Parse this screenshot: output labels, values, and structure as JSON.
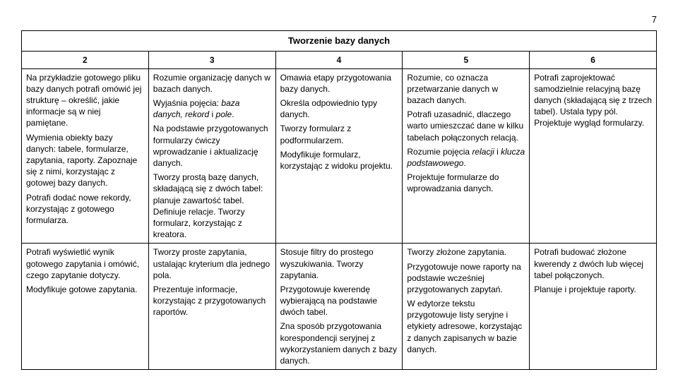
{
  "page_number": "7",
  "table": {
    "title": "Tworzenie bazy danych",
    "column_headers": [
      "2",
      "3",
      "4",
      "5",
      "6"
    ],
    "column_widths": [
      "20%",
      "20%",
      "20%",
      "20%",
      "20%"
    ],
    "rows": [
      {
        "cells": [
          {
            "paragraphs": [
              "Na przykładzie gotowego pliku bazy danych potrafi omówić jej strukturę – określić, jakie informacje są w niej pamiętane.",
              "Wymienia obiekty bazy danych: tabele, formularze, zapytania, raporty. Zapoznaje się z nimi, korzystając z gotowej bazy danych.",
              "Potrafi dodać nowe rekordy, korzystając z gotowego formularza."
            ]
          },
          {
            "paragraphs": [
              "Rozumie organizację danych w bazach danych.",
              "Wyjaśnia pojęcia: <em class='term'>baza danych, rekord</em> i <em class='term'>pole</em>.",
              "Na podstawie przygotowanych formularzy ćwiczy wprowadzanie i aktualizację danych.",
              "Tworzy prostą bazę danych, składającą się z dwóch tabel: planuje zawartość tabel. Definiuje relacje. Tworzy formularz, korzystając z kreatora."
            ]
          },
          {
            "paragraphs": [
              "Omawia etapy przygotowania bazy danych.",
              "Określa odpowiednio typy danych.",
              "Tworzy formularz z podformularzem.",
              "Modyfikuje formularz, korzystając z widoku projektu."
            ]
          },
          {
            "paragraphs": [
              "Rozumie, co oznacza przetwarzanie danych w bazach danych.",
              "Potrafi uzasadnić, dlaczego warto umieszczać dane w kilku tabelach połączonych relacją.",
              "Rozumie pojęcia <em class='term'>relacji</em> i <em class='term'>klucza podstawowego</em>.",
              "Projektuje formularze do wprowadzania danych."
            ]
          },
          {
            "paragraphs": [
              "Potrafi zaprojektować samodzielnie relacyjną bazę danych (składającą się z trzech tabel). Ustala typy pól. Projektuje wygląd formularzy."
            ]
          }
        ]
      },
      {
        "cells": [
          {
            "paragraphs": [
              "Potrafi wyświetlić wynik gotowego zapytania i omówić, czego zapytanie dotyczy.",
              "Modyfikuje gotowe zapytania."
            ]
          },
          {
            "paragraphs": [
              "Tworzy proste zapytania, ustalając kryterium dla jednego pola.",
              "Prezentuje informacje, korzystając z przygotowanych raportów."
            ]
          },
          {
            "paragraphs": [
              "Stosuje filtry do prostego wyszukiwania. Tworzy zapytania.",
              "Przygotowuje kwerendę wybierającą na podstawie dwóch tabel.",
              "Zna sposób przygotowania korespondencji seryjnej z wykorzystaniem danych z bazy danych."
            ]
          },
          {
            "paragraphs": [
              "Tworzy złożone zapytania.",
              "Przygotowuje nowe raporty na podstawie wcześniej przygotowanych zapytań.",
              "W edytorze tekstu przygotowuje listy seryjne i etykiety adresowe, korzystając z danych zapisanych w bazie danych."
            ]
          },
          {
            "paragraphs": [
              "Potrafi budować złożone kwerendy z dwóch lub więcej tabel połączonych.",
              "Planuje i projektuje raporty."
            ]
          }
        ]
      }
    ]
  }
}
